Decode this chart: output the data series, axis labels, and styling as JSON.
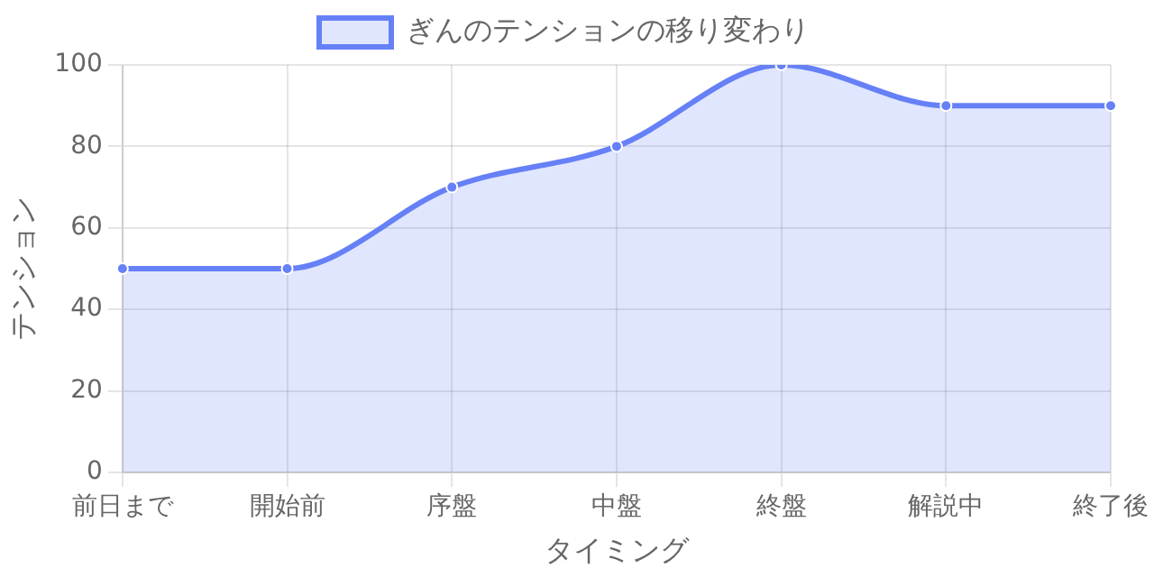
{
  "chart_data": {
    "type": "area",
    "categories": [
      "前日まで",
      "開始前",
      "序盤",
      "中盤",
      "終盤",
      "解説中",
      "終了後"
    ],
    "series": [
      {
        "name": "ぎんのテンションの移り変わり",
        "color": "#6680f7",
        "values": [
          50,
          50,
          70,
          80,
          100,
          90,
          90
        ]
      }
    ],
    "xlabel": "タイミング",
    "ylabel": "テンション",
    "ylim": [
      0,
      100
    ],
    "yticks": [
      0,
      20,
      40,
      60,
      80,
      100
    ],
    "grid": true,
    "legend": "top",
    "marker": "circle"
  }
}
